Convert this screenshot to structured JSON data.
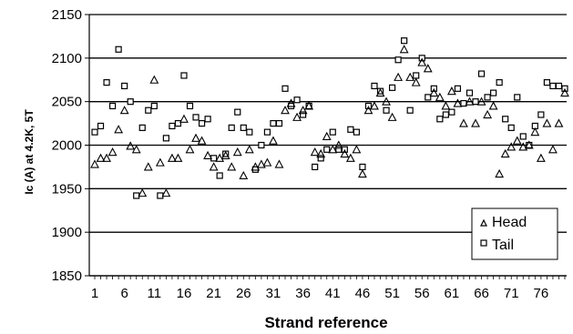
{
  "chart_data": {
    "type": "scatter",
    "xlabel": "Strand reference",
    "ylabel": "Ic (A) at 4.2K, 5T",
    "xlim": [
      1,
      80
    ],
    "ylim": [
      1850,
      2150
    ],
    "yticks": [
      1850,
      1900,
      1950,
      2000,
      2050,
      2100,
      2150
    ],
    "xticks": [
      1,
      6,
      11,
      16,
      21,
      26,
      31,
      36,
      41,
      46,
      51,
      56,
      61,
      66,
      71,
      76
    ],
    "grid": "horizontal",
    "legend_position": "bottom-right",
    "series": [
      {
        "name": "Head",
        "marker": "triangle",
        "x": [
          1,
          2,
          3,
          4,
          5,
          6,
          7,
          8,
          9,
          10,
          11,
          12,
          13,
          14,
          15,
          16,
          17,
          18,
          19,
          20,
          21,
          22,
          23,
          24,
          25,
          26,
          27,
          28,
          29,
          30,
          31,
          32,
          33,
          34,
          35,
          36,
          37,
          38,
          39,
          40,
          41,
          42,
          43,
          44,
          45,
          46,
          47,
          48,
          49,
          50,
          51,
          52,
          53,
          54,
          55,
          56,
          57,
          58,
          59,
          60,
          61,
          62,
          63,
          64,
          65,
          66,
          67,
          68,
          69,
          70,
          71,
          72,
          73,
          74,
          75,
          76,
          77,
          78,
          79,
          80
        ],
        "y": [
          1978,
          1985,
          1985,
          1992,
          2018,
          2040,
          1999,
          1995,
          1945,
          1975,
          2075,
          1980,
          1945,
          1985,
          1985,
          2030,
          1995,
          2008,
          2005,
          1988,
          1975,
          1985,
          1988,
          1975,
          1992,
          1965,
          1995,
          1975,
          1978,
          1980,
          2005,
          1978,
          2040,
          2048,
          2032,
          2040,
          2045,
          1992,
          1990,
          2010,
          1995,
          2000,
          1990,
          1985,
          1995,
          1967,
          2040,
          2045,
          2060,
          2050,
          2032,
          2078,
          2110,
          2078,
          2072,
          2095,
          2088,
          2060,
          2055,
          2045,
          2062,
          2048,
          2025,
          2050,
          2025,
          2050,
          2035,
          2045,
          1967,
          1990,
          1998,
          2005,
          1998,
          2000,
          2015,
          1985,
          2025,
          1995,
          2025,
          2060
        ]
      },
      {
        "name": "Tail",
        "marker": "square",
        "x": [
          1,
          2,
          3,
          4,
          5,
          6,
          7,
          8,
          9,
          10,
          11,
          12,
          13,
          14,
          15,
          16,
          17,
          18,
          19,
          20,
          21,
          22,
          23,
          24,
          25,
          26,
          27,
          28,
          29,
          30,
          31,
          32,
          33,
          34,
          35,
          36,
          37,
          38,
          39,
          40,
          41,
          42,
          43,
          44,
          45,
          46,
          47,
          48,
          49,
          50,
          51,
          52,
          53,
          54,
          55,
          56,
          57,
          58,
          59,
          60,
          61,
          62,
          63,
          64,
          65,
          66,
          67,
          68,
          69,
          70,
          71,
          72,
          73,
          74,
          75,
          76,
          77,
          78,
          79,
          80
        ],
        "y": [
          2015,
          2022,
          2072,
          2045,
          2110,
          2068,
          2050,
          1942,
          2020,
          2040,
          2045,
          1942,
          2008,
          2022,
          2025,
          2080,
          2045,
          2032,
          2025,
          2030,
          1985,
          1965,
          1990,
          2020,
          2038,
          2020,
          2015,
          1972,
          2000,
          2015,
          2025,
          2025,
          2065,
          2045,
          2052,
          2035,
          2045,
          1975,
          1985,
          1995,
          2015,
          1995,
          1995,
          2018,
          2015,
          1975,
          2045,
          2068,
          2062,
          2040,
          2066,
          2098,
          2120,
          2040,
          2080,
          2100,
          2055,
          2065,
          2030,
          2035,
          2038,
          2065,
          2048,
          2060,
          2050,
          2082,
          2055,
          2060,
          2072,
          2030,
          2020,
          2055,
          2010,
          2000,
          2022,
          2035,
          2072,
          2068,
          2068,
          2065
        ]
      }
    ]
  }
}
